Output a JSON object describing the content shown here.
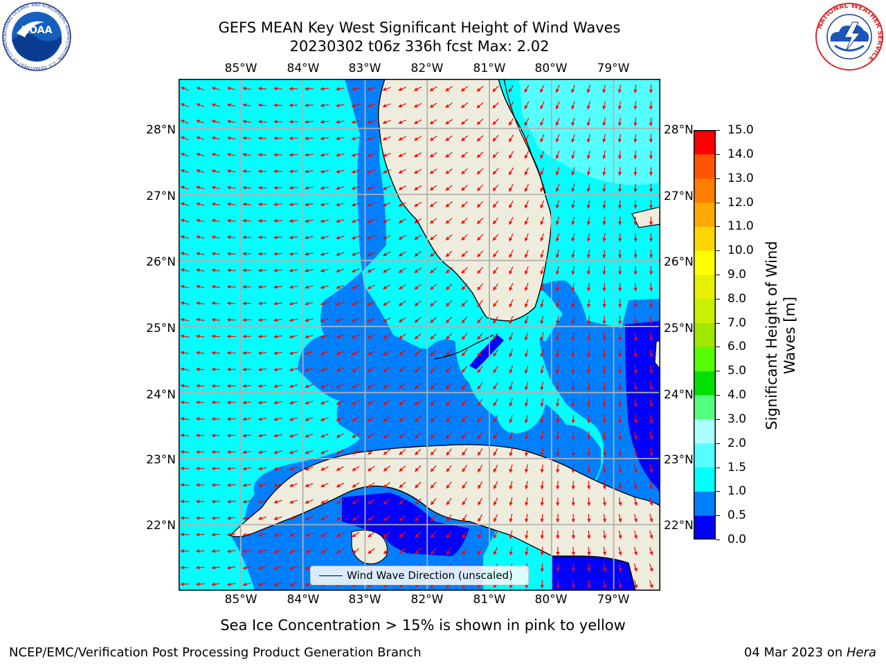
{
  "header": {
    "title_line1": "GEFS MEAN Key West Significant Height of Wind Waves",
    "title_line2": "20230302 t06z 336h fcst   Max: 2.02"
  },
  "logos": {
    "noaa": {
      "text": "NOAA",
      "ring_text": "NATIONAL OCEANIC AND ATMOSPHERIC ADMINISTRATION · U.S. DEPARTMENT OF COMMERCE"
    },
    "nws": {
      "ring_text": "NATIONAL WEATHER SERVICE"
    }
  },
  "map": {
    "longitude_ticks": [
      "85°W",
      "84°W",
      "83°W",
      "82°W",
      "81°W",
      "80°W",
      "79°W"
    ],
    "latitude_ticks": [
      "28°N",
      "27°N",
      "26°N",
      "25°N",
      "24°N",
      "23°N",
      "22°N"
    ],
    "extent": {
      "lon_min": -86.0,
      "lon_max": -78.25,
      "lat_min": 21.0,
      "lat_max": 28.75
    },
    "land_color": "#eeecdd",
    "grid_color": "#b0b0b0",
    "arrow_color": "#ff0000"
  },
  "legend": {
    "label": "Wind Wave Direction (unscaled)"
  },
  "colorbar": {
    "label_line1": "Significant Height of Wind",
    "label_line2": "Waves [m]",
    "ticks": [
      "15.0",
      "14.0",
      "13.0",
      "12.0",
      "11.0",
      "10.0",
      "9.0",
      "8.0",
      "7.0",
      "6.0",
      "5.0",
      "4.0",
      "3.0",
      "2.0",
      "1.5",
      "1.0",
      "0.5",
      "0.0"
    ],
    "levels": [
      0.0,
      0.5,
      1.0,
      1.5,
      2.0,
      3.0,
      4.0,
      5.0,
      6.0,
      7.0,
      8.0,
      9.0,
      10.0,
      11.0,
      12.0,
      13.0,
      14.0,
      15.0
    ],
    "colors": [
      "#0000ff",
      "#0080ff",
      "#00ffff",
      "#55ffff",
      "#aaffff",
      "#55ff80",
      "#00e000",
      "#55ff00",
      "#a0e600",
      "#c8f000",
      "#e6f000",
      "#ffff00",
      "#ffd700",
      "#ffaa00",
      "#ff8000",
      "#ff5500",
      "#ff0000"
    ]
  },
  "notes": {
    "ice": "Sea Ice Concentration > 15% is shown in pink to yellow"
  },
  "footer": {
    "left": "NCEP/EMC/Verification Post Processing Product Generation Branch",
    "date": "04 Mar 2023 on ",
    "machine": "Hera"
  }
}
